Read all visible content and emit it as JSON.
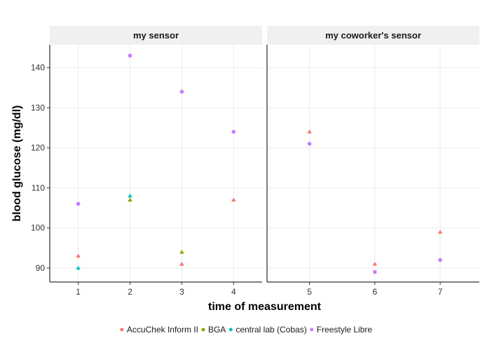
{
  "chart_data": {
    "type": "scatter",
    "xlabel": "time of measurement",
    "ylabel": "blood glucose (mg/dl)",
    "ylim": [
      86.5,
      145.7
    ],
    "y_ticks": [
      90,
      100,
      110,
      120,
      130,
      140
    ],
    "grid": true,
    "legend_position": "bottom",
    "facets": [
      {
        "label": "my sensor",
        "x_ticks": [
          1,
          2,
          3,
          4
        ],
        "xlim": [
          0.45,
          4.55
        ]
      },
      {
        "label": "my coworker's sensor",
        "x_ticks": [
          5,
          6,
          7
        ],
        "xlim": [
          4.35,
          7.6
        ]
      }
    ],
    "series": [
      {
        "name": "AccuChek Inform II",
        "color": "#F8766D",
        "shape": "triangle",
        "points": [
          {
            "facet": 0,
            "x": 1,
            "y": 93
          },
          {
            "facet": 0,
            "x": 3,
            "y": 91
          },
          {
            "facet": 0,
            "x": 4,
            "y": 107
          },
          {
            "facet": 1,
            "x": 5,
            "y": 124
          },
          {
            "facet": 1,
            "x": 6,
            "y": 91
          },
          {
            "facet": 1,
            "x": 7,
            "y": 99
          }
        ]
      },
      {
        "name": "BGA",
        "color": "#7CAE00",
        "shape": "triangle",
        "points": [
          {
            "facet": 0,
            "x": 2,
            "y": 107
          },
          {
            "facet": 0,
            "x": 3,
            "y": 94
          }
        ]
      },
      {
        "name": "central lab (Cobas)",
        "color": "#00BFC4",
        "shape": "triangle",
        "points": [
          {
            "facet": 0,
            "x": 1,
            "y": 90
          },
          {
            "facet": 0,
            "x": 2,
            "y": 108
          }
        ]
      },
      {
        "name": "Freestyle Libre",
        "color": "#C77CFF",
        "shape": "circle",
        "points": [
          {
            "facet": 0,
            "x": 1,
            "y": 106
          },
          {
            "facet": 0,
            "x": 2,
            "y": 143
          },
          {
            "facet": 0,
            "x": 3,
            "y": 134
          },
          {
            "facet": 0,
            "x": 4,
            "y": 124
          },
          {
            "facet": 1,
            "x": 5,
            "y": 121
          },
          {
            "facet": 1,
            "x": 6,
            "y": 89
          },
          {
            "facet": 1,
            "x": 7,
            "y": 92
          }
        ]
      }
    ]
  }
}
